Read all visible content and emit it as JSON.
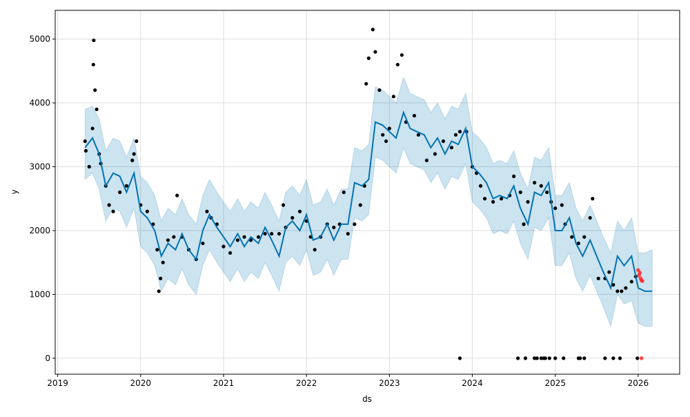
{
  "chart_data": {
    "type": "line",
    "title": "",
    "xlabel": "ds",
    "ylabel": "y",
    "xlim": [
      2018.97,
      2026.5
    ],
    "ylim": [
      -250,
      5450
    ],
    "grid": true,
    "x_ticks": [
      2019,
      2020,
      2021,
      2022,
      2023,
      2024,
      2025,
      2026
    ],
    "x_tick_labels": [
      "2019",
      "2020",
      "2021",
      "2022",
      "2023",
      "2024",
      "2025",
      "2026"
    ],
    "y_ticks": [
      0,
      1000,
      2000,
      3000,
      4000,
      5000
    ],
    "y_tick_labels": [
      "0",
      "1000",
      "2000",
      "3000",
      "4000",
      "5000"
    ],
    "colors": {
      "forecast": "#0072B2",
      "band": "#0072B2",
      "observed": "#000000",
      "test": "#ff2a2a",
      "grid": "#dddddd"
    },
    "forecast": {
      "x": [
        2019.33,
        2019.42,
        2019.5,
        2019.58,
        2019.67,
        2019.75,
        2019.83,
        2019.92,
        2020.0,
        2020.08,
        2020.17,
        2020.25,
        2020.33,
        2020.42,
        2020.5,
        2020.58,
        2020.67,
        2020.75,
        2020.83,
        2020.92,
        2021.0,
        2021.08,
        2021.17,
        2021.25,
        2021.33,
        2021.42,
        2021.5,
        2021.58,
        2021.67,
        2021.75,
        2021.83,
        2021.92,
        2022.0,
        2022.08,
        2022.17,
        2022.25,
        2022.33,
        2022.42,
        2022.5,
        2022.58,
        2022.67,
        2022.75,
        2022.83,
        2022.92,
        2023.0,
        2023.08,
        2023.17,
        2023.25,
        2023.33,
        2023.42,
        2023.5,
        2023.58,
        2023.67,
        2023.75,
        2023.83,
        2023.92,
        2024.0,
        2024.08,
        2024.17,
        2024.25,
        2024.33,
        2024.42,
        2024.5,
        2024.58,
        2024.67,
        2024.75,
        2024.83,
        2024.92,
        2025.0,
        2025.08,
        2025.17,
        2025.25,
        2025.33,
        2025.42,
        2025.5,
        2025.58,
        2025.67,
        2025.75,
        2025.83,
        2025.92,
        2026.0,
        2026.08,
        2026.17
      ],
      "yhat": [
        3300,
        3450,
        3200,
        2700,
        2900,
        2850,
        2600,
        2900,
        2300,
        2200,
        2000,
        1600,
        1800,
        1700,
        1950,
        1700,
        1550,
        2000,
        2250,
        2050,
        1900,
        1750,
        1950,
        1750,
        1900,
        1800,
        2050,
        1850,
        1600,
        2050,
        2150,
        2000,
        2250,
        1850,
        1900,
        2100,
        1850,
        2100,
        2100,
        2750,
        2700,
        2800,
        3700,
        3650,
        3550,
        3450,
        3850,
        3600,
        3550,
        3500,
        3300,
        3450,
        3200,
        3400,
        3350,
        3600,
        3000,
        2900,
        2750,
        2500,
        2550,
        2500,
        2700,
        2350,
        2100,
        2600,
        2550,
        2750,
        2000,
        2000,
        2200,
        1800,
        1600,
        1850,
        1600,
        1350,
        1100,
        1600,
        1450,
        1600,
        1100,
        1050,
        1050
      ],
      "yhat_lower": [
        2800,
        2900,
        2650,
        2150,
        2350,
        2300,
        2050,
        2350,
        1750,
        1650,
        1450,
        1050,
        1250,
        1150,
        1400,
        1150,
        1000,
        1450,
        1700,
        1500,
        1350,
        1200,
        1400,
        1200,
        1350,
        1250,
        1500,
        1300,
        1050,
        1500,
        1600,
        1450,
        1700,
        1300,
        1350,
        1550,
        1300,
        1550,
        1550,
        2200,
        2150,
        2250,
        3150,
        3100,
        3000,
        2900,
        3300,
        3050,
        3000,
        2950,
        2750,
        2900,
        2650,
        2850,
        2800,
        3050,
        2450,
        2350,
        2200,
        1950,
        2000,
        1950,
        2150,
        1800,
        1550,
        2050,
        2000,
        2200,
        1450,
        1450,
        1650,
        1250,
        1050,
        1300,
        1050,
        800,
        500,
        1000,
        850,
        900,
        550,
        500,
        500
      ],
      "yhat_upper": [
        3900,
        3950,
        3750,
        3250,
        3450,
        3400,
        3150,
        3450,
        2850,
        2750,
        2550,
        2150,
        2350,
        2250,
        2500,
        2250,
        2100,
        2550,
        2800,
        2600,
        2450,
        2300,
        2500,
        2300,
        2450,
        2350,
        2600,
        2400,
        2150,
        2600,
        2700,
        2550,
        2800,
        2400,
        2450,
        2650,
        2400,
        2650,
        2650,
        3300,
        3250,
        3350,
        4250,
        4200,
        4100,
        4000,
        4400,
        4150,
        4100,
        4050,
        3850,
        4000,
        3750,
        3950,
        3900,
        4150,
        3550,
        3450,
        3300,
        3050,
        3100,
        3050,
        3250,
        2900,
        2650,
        3150,
        3100,
        3300,
        2550,
        2550,
        2750,
        2350,
        2150,
        2400,
        2150,
        1900,
        1650,
        2150,
        2000,
        2200,
        1650,
        1650,
        1700
      ]
    },
    "observed": {
      "x": [
        2019.33,
        2019.34,
        2019.38,
        2019.42,
        2019.43,
        2019.435,
        2019.45,
        2019.47,
        2019.5,
        2019.52,
        2019.58,
        2019.62,
        2019.67,
        2019.75,
        2019.83,
        2019.9,
        2019.92,
        2019.95,
        2020.0,
        2020.08,
        2020.15,
        2020.2,
        2020.22,
        2020.24,
        2020.27,
        2020.33,
        2020.4,
        2020.44,
        2020.5,
        2020.58,
        2020.67,
        2020.75,
        2020.8,
        2020.85,
        2020.92,
        2021.0,
        2021.08,
        2021.17,
        2021.25,
        2021.33,
        2021.42,
        2021.5,
        2021.58,
        2021.67,
        2021.72,
        2021.75,
        2021.83,
        2021.92,
        2022.0,
        2022.05,
        2022.1,
        2022.17,
        2022.25,
        2022.33,
        2022.4,
        2022.45,
        2022.5,
        2022.58,
        2022.65,
        2022.7,
        2022.72,
        2022.75,
        2022.8,
        2022.83,
        2022.88,
        2022.92,
        2022.96,
        2023.0,
        2023.05,
        2023.1,
        2023.15,
        2023.2,
        2023.3,
        2023.35,
        2023.45,
        2023.55,
        2023.65,
        2023.75,
        2023.8,
        2023.85,
        2023.93,
        2024.0,
        2024.05,
        2024.1,
        2024.15,
        2024.25,
        2024.35,
        2024.45,
        2024.5,
        2024.58,
        2024.62,
        2024.67,
        2024.75,
        2024.83,
        2024.9,
        2024.95,
        2025.0,
        2025.08,
        2025.12,
        2025.2,
        2025.28,
        2025.35,
        2025.42,
        2025.45,
        2025.52,
        2025.6,
        2025.65,
        2025.7,
        2025.75,
        2025.8,
        2025.85,
        2025.92,
        2025.97,
        2023.85,
        2024.55,
        2024.64,
        2024.75,
        2024.78,
        2024.83,
        2024.86,
        2024.88,
        2024.93,
        2025.0,
        2025.1,
        2025.28,
        2025.3,
        2025.35,
        2025.6,
        2025.7,
        2025.78,
        2025.99
      ],
      "y": [
        3400,
        3250,
        3000,
        3600,
        4600,
        4980,
        4200,
        3900,
        3200,
        3050,
        2700,
        2400,
        2300,
        2600,
        2700,
        3100,
        3200,
        3400,
        2400,
        2300,
        2100,
        1700,
        1050,
        1250,
        1500,
        1850,
        1900,
        2550,
        1900,
        1700,
        1550,
        1800,
        2300,
        2200,
        2100,
        1750,
        1650,
        1850,
        1900,
        1850,
        1900,
        1950,
        1950,
        1950,
        2400,
        2050,
        2200,
        2300,
        2150,
        1900,
        1700,
        1900,
        2100,
        2050,
        2100,
        2600,
        1950,
        2100,
        2400,
        2700,
        4300,
        4700,
        5150,
        4800,
        4200,
        3500,
        3400,
        3600,
        4100,
        4600,
        4750,
        3700,
        3800,
        3500,
        3100,
        3200,
        3400,
        3300,
        3500,
        3550,
        3550,
        3000,
        2900,
        2700,
        2500,
        2450,
        2500,
        2550,
        2850,
        2600,
        2100,
        2450,
        2750,
        2700,
        2600,
        2450,
        2350,
        2400,
        2100,
        1900,
        1800,
        1900,
        2200,
        2500,
        1250,
        1250,
        1350,
        1150,
        1050,
        1050,
        1100,
        1200,
        1280,
        0,
        0,
        0,
        0,
        0,
        0,
        0,
        0,
        0,
        0,
        0,
        0,
        0,
        0,
        0,
        0,
        0,
        0
      ]
    },
    "test_points": {
      "x": [
        2026.0,
        2026.01,
        2026.02,
        2026.03,
        2026.04,
        2026.05,
        2026.04
      ],
      "y": [
        1380,
        1300,
        1340,
        1250,
        1220,
        1210,
        0
      ]
    }
  }
}
